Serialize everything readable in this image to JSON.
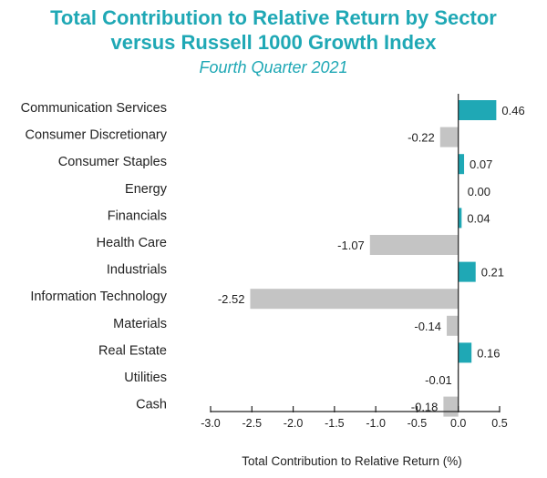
{
  "header": {
    "title_line1": "Total Contribution to Relative Return by Sector",
    "title_line2": "versus Russell 1000 Growth Index",
    "subtitle": "Fourth Quarter 2021"
  },
  "colors": {
    "positive": "#1fa8b5",
    "negative": "#c4c4c4",
    "title": "#1fa8b5",
    "text": "#222222",
    "axis": "#222222"
  },
  "chart_data": {
    "type": "bar",
    "orientation": "horizontal",
    "title": "Total Contribution to Relative Return by Sector versus Russell 1000 Growth Index",
    "subtitle": "Fourth Quarter 2021",
    "xlabel": "Total Contribution to Relative Return (%)",
    "ylabel": "",
    "categories": [
      "Communication Services",
      "Consumer Discretionary",
      "Consumer Staples",
      "Energy",
      "Financials",
      "Health Care",
      "Industrials",
      "Information Technology",
      "Materials",
      "Real Estate",
      "Utilities",
      "Cash"
    ],
    "values": [
      0.46,
      -0.22,
      0.07,
      0.0,
      0.04,
      -1.07,
      0.21,
      -2.52,
      -0.14,
      0.16,
      -0.01,
      -0.18
    ],
    "value_labels": [
      "0.46",
      "-0.22",
      "0.07",
      "0.00",
      "0.04",
      "-1.07",
      "0.21",
      "-2.52",
      "-0.14",
      "0.16",
      "-0.01",
      "-0.18"
    ],
    "xlim": [
      -3.0,
      0.5
    ],
    "xticks": [
      -3.0,
      -2.5,
      -2.0,
      -1.5,
      -1.0,
      -0.5,
      0.0,
      0.5
    ],
    "xtick_labels": [
      "-3.0",
      "-2.5",
      "-2.0",
      "-1.5",
      "-1.0",
      "-0.5",
      "0.0",
      "0.5"
    ],
    "grid": false,
    "legend": "none"
  }
}
